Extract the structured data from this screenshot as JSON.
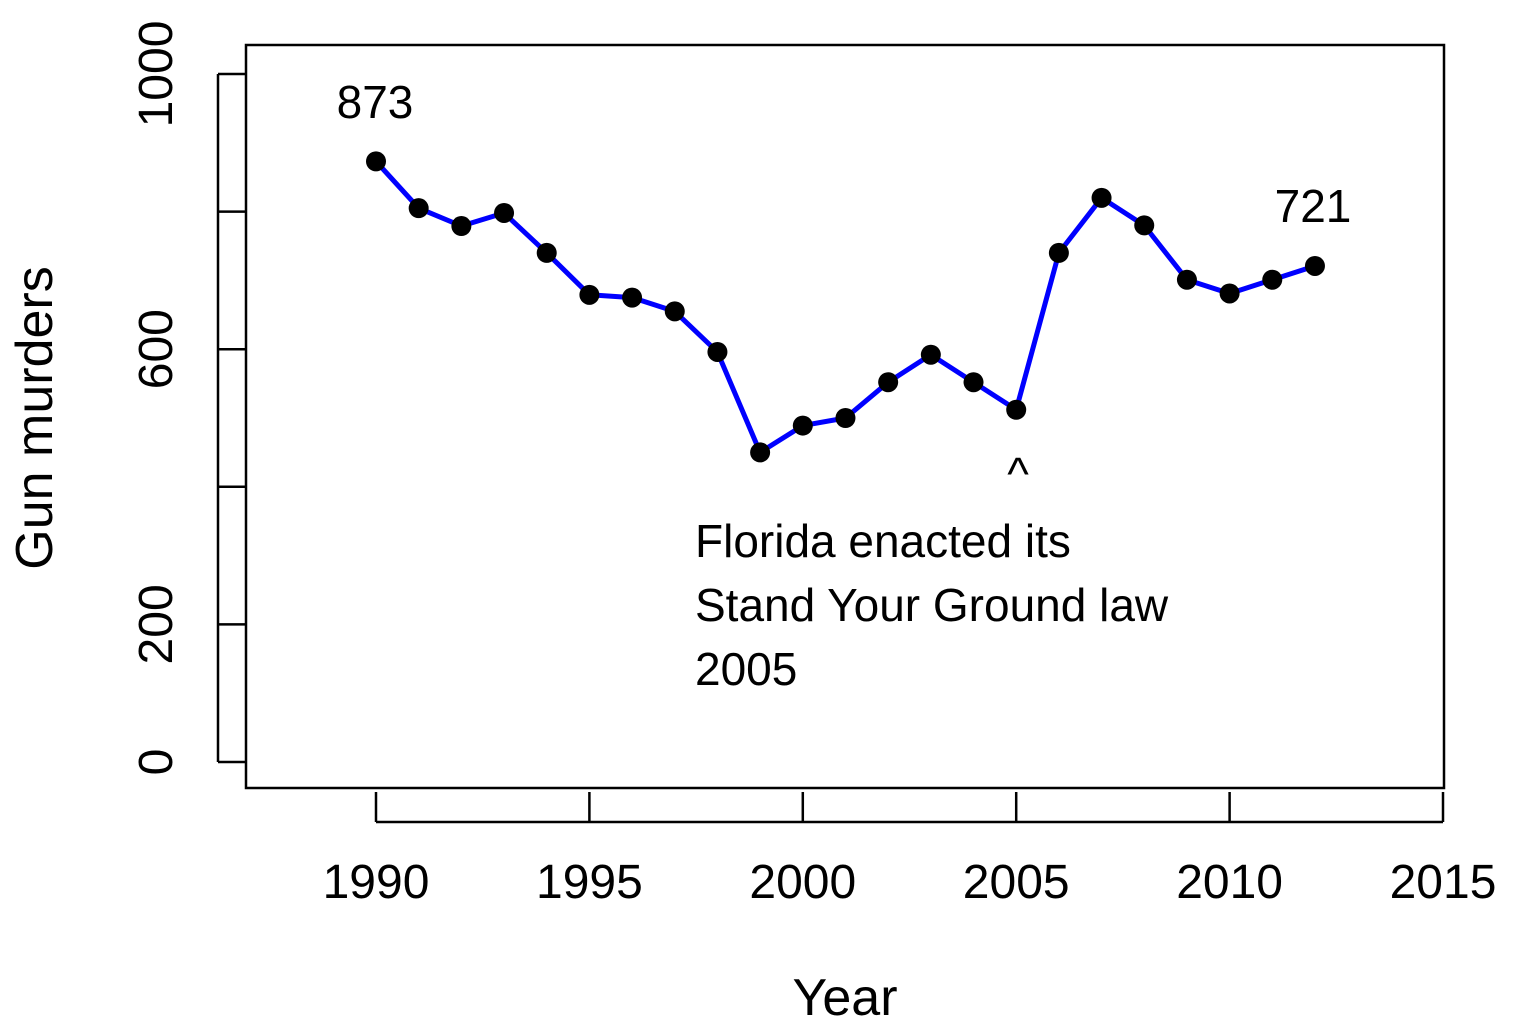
{
  "chart_data": {
    "type": "line",
    "title": "",
    "xlabel": "Year",
    "ylabel": "Gun murders",
    "xlim": [
      1987,
      2015
    ],
    "ylim": [
      0,
      1000
    ],
    "xticks": [
      1990,
      1995,
      2000,
      2005,
      2010,
      2015
    ],
    "yticks": [
      0,
      200,
      400,
      600,
      800,
      1000
    ],
    "ytick_labels": [
      "0",
      "200",
      "",
      "600",
      "",
      "1000"
    ],
    "series": [
      {
        "name": "Gun murders",
        "x": [
          1990,
          1991,
          1992,
          1993,
          1994,
          1995,
          1996,
          1997,
          1998,
          1999,
          2000,
          2001,
          2002,
          2003,
          2004,
          2005,
          2006,
          2007,
          2008,
          2009,
          2010,
          2011,
          2012
        ],
        "y": [
          873,
          805,
          779,
          798,
          740,
          679,
          675,
          655,
          596,
          450,
          489,
          500,
          552,
          592,
          552,
          512,
          740,
          820,
          780,
          701,
          681,
          701,
          721
        ]
      }
    ],
    "annotations": [
      {
        "id": "first-value",
        "text": "873",
        "x": 1990,
        "y": 873
      },
      {
        "id": "last-value",
        "text": "721",
        "x": 2012,
        "y": 721
      },
      {
        "id": "caret",
        "text": "^",
        "x": 2005,
        "y": 512
      },
      {
        "id": "law-note-1",
        "text": "Florida enacted its"
      },
      {
        "id": "law-note-2",
        "text": "Stand Your Ground law"
      },
      {
        "id": "law-note-3",
        "text": "2005"
      }
    ]
  },
  "colors": {
    "line": "#0000ff",
    "point": "#000000",
    "axis": "#000000",
    "background": "#ffffff"
  }
}
